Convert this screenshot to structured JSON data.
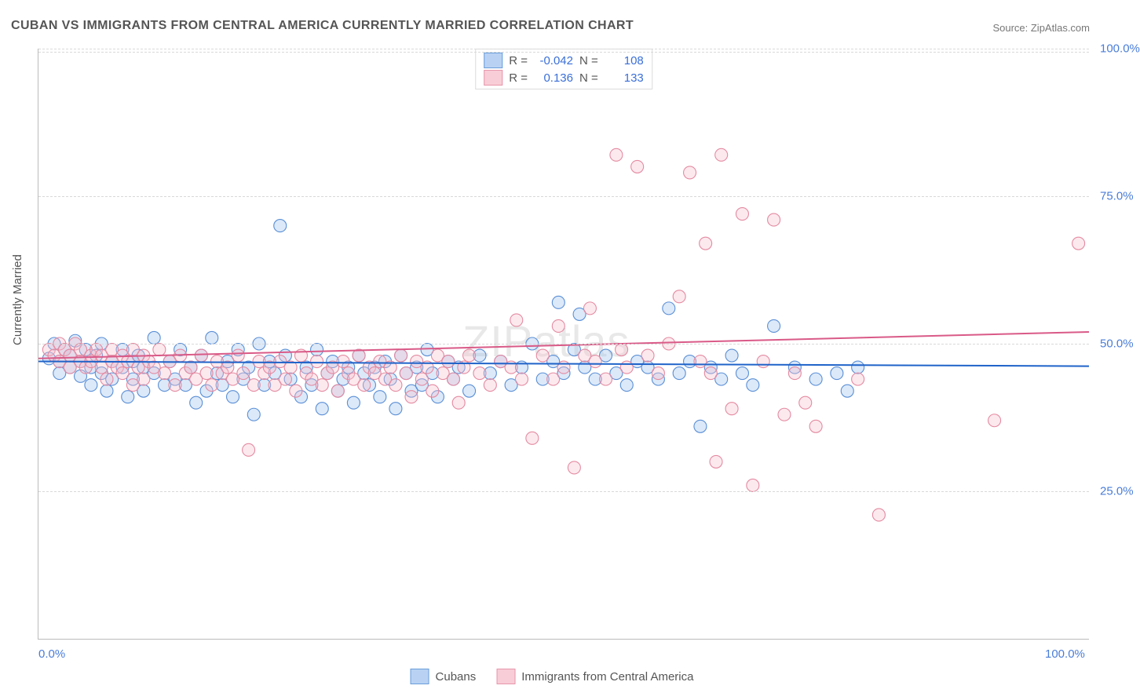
{
  "title": "CUBAN VS IMMIGRANTS FROM CENTRAL AMERICA CURRENTLY MARRIED CORRELATION CHART",
  "source_label": "Source: ",
  "source_value": "ZipAtlas.com",
  "y_axis_title": "Currently Married",
  "watermark": "ZIPatlas",
  "chart": {
    "type": "scatter",
    "xlim": [
      0,
      100
    ],
    "ylim": [
      0,
      100
    ],
    "x_ticks": [
      0,
      100
    ],
    "x_tick_labels": [
      "0.0%",
      "100.0%"
    ],
    "y_ticks": [
      25,
      50,
      75,
      100
    ],
    "y_tick_labels": [
      "25.0%",
      "50.0%",
      "75.0%",
      "100.0%"
    ],
    "extra_gridline_y": 99.5,
    "background_color": "#ffffff",
    "grid_color": "#d9d9d9",
    "axis_color": "#bbbbbb",
    "tick_label_color": "#4a7dd8",
    "point_radius": 8,
    "series": [
      {
        "id": "cubans",
        "label": "Cubans",
        "fill": "#9cc0ef",
        "stroke": "#5a8fd6",
        "legend_fill": "#b9d2f3",
        "legend_stroke": "#6a9ddb",
        "R": "-0.042",
        "N": "108",
        "trend": {
          "y_at_x0": 47.0,
          "y_at_x100": 46.2,
          "color": "#1f63c9"
        },
        "points": [
          [
            1,
            47.5
          ],
          [
            1.5,
            50
          ],
          [
            2,
            47
          ],
          [
            2,
            45
          ],
          [
            2.5,
            49
          ],
          [
            3,
            48
          ],
          [
            3,
            46
          ],
          [
            3.5,
            50.5
          ],
          [
            4,
            47
          ],
          [
            4,
            44.5
          ],
          [
            4.5,
            49
          ],
          [
            5,
            46
          ],
          [
            5,
            43
          ],
          [
            5.5,
            48
          ],
          [
            6,
            45
          ],
          [
            6,
            50
          ],
          [
            6.5,
            42
          ],
          [
            7,
            47
          ],
          [
            7,
            44
          ],
          [
            8,
            49
          ],
          [
            8,
            46
          ],
          [
            8.5,
            41
          ],
          [
            9,
            47
          ],
          [
            9,
            44
          ],
          [
            9.5,
            48
          ],
          [
            10,
            46
          ],
          [
            10,
            42
          ],
          [
            11,
            51
          ],
          [
            11,
            45
          ],
          [
            12,
            43
          ],
          [
            12.5,
            47
          ],
          [
            13,
            44
          ],
          [
            13.5,
            49
          ],
          [
            14,
            43
          ],
          [
            14.5,
            46
          ],
          [
            15,
            40
          ],
          [
            15.5,
            48
          ],
          [
            16,
            42
          ],
          [
            16.5,
            51
          ],
          [
            17,
            45
          ],
          [
            17.5,
            43
          ],
          [
            18,
            47
          ],
          [
            18.5,
            41
          ],
          [
            19,
            49
          ],
          [
            19.5,
            44
          ],
          [
            20,
            46
          ],
          [
            20.5,
            38
          ],
          [
            21,
            50
          ],
          [
            21.5,
            43
          ],
          [
            22,
            47
          ],
          [
            22.5,
            45
          ],
          [
            23,
            70
          ],
          [
            23.5,
            48
          ],
          [
            24,
            44
          ],
          [
            25,
            41
          ],
          [
            25.5,
            46
          ],
          [
            26,
            43
          ],
          [
            26.5,
            49
          ],
          [
            27,
            39
          ],
          [
            27.5,
            45
          ],
          [
            28,
            47
          ],
          [
            28.5,
            42
          ],
          [
            29,
            44
          ],
          [
            29.5,
            46
          ],
          [
            30,
            40
          ],
          [
            30.5,
            48
          ],
          [
            31,
            45
          ],
          [
            31.5,
            43
          ],
          [
            32,
            46
          ],
          [
            32.5,
            41
          ],
          [
            33,
            47
          ],
          [
            33.5,
            44
          ],
          [
            34,
            39
          ],
          [
            34.5,
            48
          ],
          [
            35,
            45
          ],
          [
            35.5,
            42
          ],
          [
            36,
            46
          ],
          [
            36.5,
            43
          ],
          [
            37,
            49
          ],
          [
            37.5,
            45
          ],
          [
            38,
            41
          ],
          [
            39,
            47
          ],
          [
            39.5,
            44
          ],
          [
            40,
            46
          ],
          [
            41,
            42
          ],
          [
            42,
            48
          ],
          [
            43,
            45
          ],
          [
            44,
            47
          ],
          [
            45,
            43
          ],
          [
            46,
            46
          ],
          [
            47,
            50
          ],
          [
            48,
            44
          ],
          [
            49,
            47
          ],
          [
            49.5,
            57
          ],
          [
            50,
            45
          ],
          [
            51,
            49
          ],
          [
            51.5,
            55
          ],
          [
            52,
            46
          ],
          [
            53,
            44
          ],
          [
            54,
            48
          ],
          [
            55,
            45
          ],
          [
            56,
            43
          ],
          [
            57,
            47
          ],
          [
            58,
            46
          ],
          [
            59,
            44
          ],
          [
            60,
            56
          ],
          [
            61,
            45
          ],
          [
            62,
            47
          ],
          [
            63,
            36
          ],
          [
            64,
            46
          ],
          [
            65,
            44
          ],
          [
            66,
            48
          ],
          [
            67,
            45
          ],
          [
            68,
            43
          ],
          [
            70,
            53
          ],
          [
            72,
            46
          ],
          [
            74,
            44
          ],
          [
            76,
            45
          ],
          [
            77,
            42
          ],
          [
            78,
            46
          ]
        ]
      },
      {
        "id": "central",
        "label": "Immigrants from Central America",
        "fill": "#f6c1cd",
        "stroke": "#e48aa1",
        "legend_fill": "#f8cdd7",
        "legend_stroke": "#e796ab",
        "R": "0.136",
        "N": "133",
        "trend": {
          "y_at_x0": 47.5,
          "y_at_x100": 52.0,
          "color": "#d95a87"
        },
        "points": [
          [
            1,
            49
          ],
          [
            1.5,
            48
          ],
          [
            2,
            50
          ],
          [
            2,
            47
          ],
          [
            2.5,
            49
          ],
          [
            3,
            48
          ],
          [
            3,
            46
          ],
          [
            3.5,
            50
          ],
          [
            4,
            47
          ],
          [
            4,
            49
          ],
          [
            4.5,
            46
          ],
          [
            5,
            48
          ],
          [
            5,
            47
          ],
          [
            5.5,
            49
          ],
          [
            6,
            46
          ],
          [
            6,
            48
          ],
          [
            6.5,
            44
          ],
          [
            7,
            47
          ],
          [
            7,
            49
          ],
          [
            7.5,
            46
          ],
          [
            8,
            48
          ],
          [
            8,
            45
          ],
          [
            8.5,
            47
          ],
          [
            9,
            49
          ],
          [
            9,
            43
          ],
          [
            9.5,
            46
          ],
          [
            10,
            48
          ],
          [
            10,
            44
          ],
          [
            10.5,
            47
          ],
          [
            11,
            46
          ],
          [
            11.5,
            49
          ],
          [
            12,
            45
          ],
          [
            12.5,
            47
          ],
          [
            13,
            43
          ],
          [
            13.5,
            48
          ],
          [
            14,
            45
          ],
          [
            14.5,
            46
          ],
          [
            15,
            44
          ],
          [
            15.5,
            48
          ],
          [
            16,
            45
          ],
          [
            16.5,
            43
          ],
          [
            17,
            47
          ],
          [
            17.5,
            45
          ],
          [
            18,
            46
          ],
          [
            18.5,
            44
          ],
          [
            19,
            48
          ],
          [
            19.5,
            45
          ],
          [
            20,
            32
          ],
          [
            20.5,
            43
          ],
          [
            21,
            47
          ],
          [
            21.5,
            45
          ],
          [
            22,
            46
          ],
          [
            22.5,
            43
          ],
          [
            23,
            47
          ],
          [
            23.5,
            44
          ],
          [
            24,
            46
          ],
          [
            24.5,
            42
          ],
          [
            25,
            48
          ],
          [
            25.5,
            45
          ],
          [
            26,
            44
          ],
          [
            26.5,
            47
          ],
          [
            27,
            43
          ],
          [
            27.5,
            45
          ],
          [
            28,
            46
          ],
          [
            28.5,
            42
          ],
          [
            29,
            47
          ],
          [
            29.5,
            45
          ],
          [
            30,
            44
          ],
          [
            30.5,
            48
          ],
          [
            31,
            43
          ],
          [
            31.5,
            46
          ],
          [
            32,
            45
          ],
          [
            32.5,
            47
          ],
          [
            33,
            44
          ],
          [
            33.5,
            46
          ],
          [
            34,
            43
          ],
          [
            34.5,
            48
          ],
          [
            35,
            45
          ],
          [
            35.5,
            41
          ],
          [
            36,
            47
          ],
          [
            36.5,
            44
          ],
          [
            37,
            46
          ],
          [
            37.5,
            42
          ],
          [
            38,
            48
          ],
          [
            38.5,
            45
          ],
          [
            39,
            47
          ],
          [
            39.5,
            44
          ],
          [
            40,
            40
          ],
          [
            40.5,
            46
          ],
          [
            41,
            48
          ],
          [
            42,
            45
          ],
          [
            43,
            43
          ],
          [
            44,
            47
          ],
          [
            45,
            46
          ],
          [
            45.5,
            54
          ],
          [
            46,
            44
          ],
          [
            47,
            34
          ],
          [
            48,
            48
          ],
          [
            49,
            44
          ],
          [
            49.5,
            53
          ],
          [
            50,
            46
          ],
          [
            51,
            29
          ],
          [
            52,
            48
          ],
          [
            52.5,
            56
          ],
          [
            53,
            47
          ],
          [
            54,
            44
          ],
          [
            55,
            82
          ],
          [
            55.5,
            49
          ],
          [
            56,
            46
          ],
          [
            57,
            80
          ],
          [
            58,
            48
          ],
          [
            59,
            45
          ],
          [
            60,
            50
          ],
          [
            61,
            58
          ],
          [
            62,
            79
          ],
          [
            63,
            47
          ],
          [
            63.5,
            67
          ],
          [
            64,
            45
          ],
          [
            64.5,
            30
          ],
          [
            65,
            82
          ],
          [
            66,
            39
          ],
          [
            67,
            72
          ],
          [
            68,
            26
          ],
          [
            69,
            47
          ],
          [
            70,
            71
          ],
          [
            71,
            38
          ],
          [
            72,
            45
          ],
          [
            73,
            40
          ],
          [
            74,
            36
          ],
          [
            78,
            44
          ],
          [
            80,
            21
          ],
          [
            91,
            37
          ],
          [
            99,
            67
          ]
        ]
      }
    ]
  },
  "legend_top_labels": {
    "R": "R =",
    "N": "N ="
  }
}
